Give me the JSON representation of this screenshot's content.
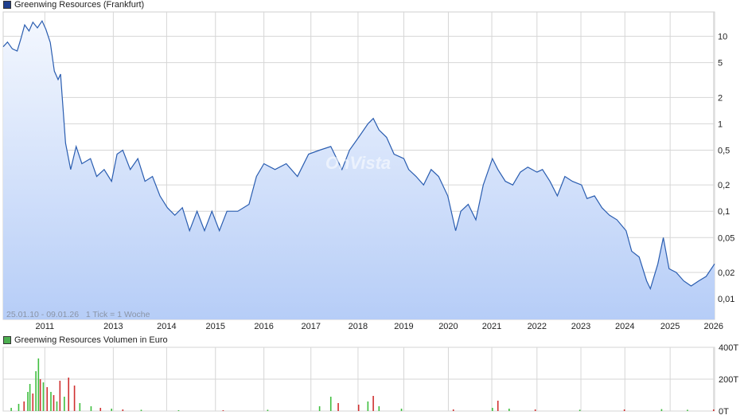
{
  "colors": {
    "price_line": "#2a5db0",
    "area_top": "#f3f7fe",
    "area_bottom": "#b6cdf7",
    "legend_price": "#1f3f8f",
    "legend_volume": "#4caf50",
    "volume_green": "#3fbf3f",
    "volume_red": "#d03030",
    "grid": "#d6d6d6"
  },
  "legend": {
    "price": "Greenwing Resources (Frankfurt)",
    "volume": "Greenwing Resources Volumen in Euro"
  },
  "info_text": "25.01.10 - 09.01.26   1 Tick = 1 Woche",
  "chart_data": [
    {
      "type": "line",
      "title": "Greenwing Resources (Frankfurt)",
      "y_scale": "log",
      "ylim": [
        0.0058,
        19
      ],
      "x_range": [
        "2010-01-25",
        "2026-01-09"
      ],
      "x_ticks": [
        "2011",
        "2013",
        "2014",
        "2015",
        "2016",
        "2017",
        "2018",
        "2019",
        "2020",
        "2021",
        "2022",
        "2023",
        "2024",
        "2025",
        "2026"
      ],
      "x_tick_dates": [
        "2011-01-01",
        "2012-07-15",
        "2013-09-25",
        "2014-10-30",
        "2015-12-01",
        "2016-12-20",
        "2018-01-10",
        "2019-01-20",
        "2020-01-20",
        "2021-01-10",
        "2022-01-15",
        "2023-01-10",
        "2024-01-05",
        "2025-01-10",
        "2026-01-01"
      ],
      "y_ticks": [
        10,
        5,
        2,
        1,
        0.5,
        0.2,
        0.1,
        0.05,
        0.02,
        0.01
      ],
      "y_tick_labels": [
        "10",
        "5",
        "2",
        "1",
        "0,5",
        "0,2",
        "0,1",
        "0,05",
        "0,02",
        "0,01"
      ],
      "grid": true,
      "series": [
        {
          "name": "Greenwing Resources (Frankfurt)",
          "points": [
            [
              "2010-01-25",
              7.6
            ],
            [
              "2010-03-01",
              8.6
            ],
            [
              "2010-04-10",
              7.2
            ],
            [
              "2010-05-20",
              6.8
            ],
            [
              "2010-06-20",
              9.5
            ],
            [
              "2010-07-20",
              13.5
            ],
            [
              "2010-08-25",
              11.5
            ],
            [
              "2010-09-25",
              14.5
            ],
            [
              "2010-11-01",
              12.5
            ],
            [
              "2010-12-10",
              15.0
            ],
            [
              "2011-01-10",
              12.0
            ],
            [
              "2011-02-15",
              8.5
            ],
            [
              "2011-03-20",
              4.0
            ],
            [
              "2011-04-20",
              3.2
            ],
            [
              "2011-05-10",
              3.7
            ],
            [
              "2011-06-20",
              0.6
            ],
            [
              "2011-08-01",
              0.3
            ],
            [
              "2011-09-15",
              0.55
            ],
            [
              "2011-11-01",
              0.35
            ],
            [
              "2012-01-10",
              0.4
            ],
            [
              "2012-03-01",
              0.25
            ],
            [
              "2012-05-01",
              0.3
            ],
            [
              "2012-07-01",
              0.22
            ],
            [
              "2012-08-15",
              0.45
            ],
            [
              "2012-10-01",
              0.5
            ],
            [
              "2012-12-01",
              0.3
            ],
            [
              "2013-02-01",
              0.4
            ],
            [
              "2013-04-01",
              0.22
            ],
            [
              "2013-06-01",
              0.25
            ],
            [
              "2013-08-01",
              0.15
            ],
            [
              "2013-10-01",
              0.11
            ],
            [
              "2013-12-01",
              0.09
            ],
            [
              "2014-02-01",
              0.11
            ],
            [
              "2014-04-01",
              0.06
            ],
            [
              "2014-06-01",
              0.1
            ],
            [
              "2014-08-01",
              0.06
            ],
            [
              "2014-10-01",
              0.1
            ],
            [
              "2014-12-01",
              0.06
            ],
            [
              "2015-02-01",
              0.1
            ],
            [
              "2015-05-01",
              0.1
            ],
            [
              "2015-08-01",
              0.12
            ],
            [
              "2015-10-01",
              0.25
            ],
            [
              "2015-12-01",
              0.35
            ],
            [
              "2016-03-01",
              0.3
            ],
            [
              "2016-06-01",
              0.35
            ],
            [
              "2016-09-01",
              0.25
            ],
            [
              "2016-12-01",
              0.45
            ],
            [
              "2017-03-01",
              0.5
            ],
            [
              "2017-06-01",
              0.55
            ],
            [
              "2017-09-01",
              0.3
            ],
            [
              "2017-11-01",
              0.5
            ],
            [
              "2018-01-15",
              0.7
            ],
            [
              "2018-04-01",
              1.0
            ],
            [
              "2018-05-15",
              1.15
            ],
            [
              "2018-07-01",
              0.85
            ],
            [
              "2018-09-01",
              0.7
            ],
            [
              "2018-11-01",
              0.45
            ],
            [
              "2019-01-20",
              0.4
            ],
            [
              "2019-03-01",
              0.3
            ],
            [
              "2019-05-01",
              0.25
            ],
            [
              "2019-07-01",
              0.2
            ],
            [
              "2019-09-01",
              0.3
            ],
            [
              "2019-11-01",
              0.25
            ],
            [
              "2020-01-15",
              0.15
            ],
            [
              "2020-03-20",
              0.06
            ],
            [
              "2020-05-01",
              0.1
            ],
            [
              "2020-07-01",
              0.12
            ],
            [
              "2020-09-01",
              0.08
            ],
            [
              "2020-11-01",
              0.2
            ],
            [
              "2021-01-15",
              0.4
            ],
            [
              "2021-03-01",
              0.3
            ],
            [
              "2021-05-01",
              0.22
            ],
            [
              "2021-07-01",
              0.2
            ],
            [
              "2021-09-01",
              0.28
            ],
            [
              "2021-11-01",
              0.32
            ],
            [
              "2022-01-15",
              0.28
            ],
            [
              "2022-03-01",
              0.3
            ],
            [
              "2022-05-01",
              0.22
            ],
            [
              "2022-07-01",
              0.15
            ],
            [
              "2022-09-01",
              0.25
            ],
            [
              "2022-11-01",
              0.22
            ],
            [
              "2023-01-15",
              0.2
            ],
            [
              "2023-03-01",
              0.14
            ],
            [
              "2023-05-01",
              0.15
            ],
            [
              "2023-07-01",
              0.11
            ],
            [
              "2023-09-01",
              0.09
            ],
            [
              "2023-11-01",
              0.08
            ],
            [
              "2024-01-15",
              0.06
            ],
            [
              "2024-03-01",
              0.035
            ],
            [
              "2024-05-01",
              0.03
            ],
            [
              "2024-07-01",
              0.016
            ],
            [
              "2024-08-01",
              0.013
            ],
            [
              "2024-10-01",
              0.025
            ],
            [
              "2024-11-15",
              0.05
            ],
            [
              "2025-01-01",
              0.022
            ],
            [
              "2025-03-01",
              0.02
            ],
            [
              "2025-05-01",
              0.016
            ],
            [
              "2025-07-01",
              0.014
            ],
            [
              "2025-09-01",
              0.016
            ],
            [
              "2025-11-01",
              0.018
            ],
            [
              "2026-01-09",
              0.025
            ]
          ]
        }
      ]
    },
    {
      "type": "bar",
      "title": "Greenwing Resources Volumen in Euro",
      "ylim": [
        0,
        400
      ],
      "y_ticks": [
        0,
        200,
        400
      ],
      "y_tick_labels": [
        "0T",
        "200T",
        "400T"
      ],
      "unit": "T",
      "series": [
        {
          "name": "Greenwing Resources Volumen in Euro",
          "points": [
            [
              "2010-04-01",
              20,
              "green"
            ],
            [
              "2010-06-01",
              45,
              "green"
            ],
            [
              "2010-07-15",
              60,
              "red"
            ],
            [
              "2010-08-15",
              120,
              "green"
            ],
            [
              "2010-09-01",
              170,
              "green"
            ],
            [
              "2010-09-25",
              110,
              "red"
            ],
            [
              "2010-10-20",
              250,
              "green"
            ],
            [
              "2010-11-10",
              330,
              "green"
            ],
            [
              "2010-11-25",
              200,
              "red"
            ],
            [
              "2010-12-20",
              180,
              "green"
            ],
            [
              "2011-01-20",
              150,
              "red"
            ],
            [
              "2011-02-20",
              120,
              "green"
            ],
            [
              "2011-03-15",
              100,
              "red"
            ],
            [
              "2011-04-10",
              60,
              "green"
            ],
            [
              "2011-05-05",
              190,
              "red"
            ],
            [
              "2011-06-10",
              90,
              "green"
            ],
            [
              "2011-07-15",
              210,
              "red"
            ],
            [
              "2011-09-01",
              160,
              "red"
            ],
            [
              "2011-10-15",
              50,
              "green"
            ],
            [
              "2012-01-15",
              30,
              "green"
            ],
            [
              "2012-04-01",
              20,
              "red"
            ],
            [
              "2012-07-01",
              15,
              "green"
            ],
            [
              "2012-10-01",
              10,
              "red"
            ],
            [
              "2013-03-01",
              8,
              "green"
            ],
            [
              "2014-01-01",
              5,
              "green"
            ],
            [
              "2015-01-01",
              5,
              "red"
            ],
            [
              "2016-01-01",
              8,
              "green"
            ],
            [
              "2017-03-01",
              30,
              "green"
            ],
            [
              "2017-06-01",
              90,
              "green"
            ],
            [
              "2017-08-01",
              50,
              "red"
            ],
            [
              "2018-01-15",
              40,
              "red"
            ],
            [
              "2018-04-01",
              60,
              "green"
            ],
            [
              "2018-05-15",
              95,
              "red"
            ],
            [
              "2018-07-01",
              30,
              "green"
            ],
            [
              "2019-01-01",
              15,
              "green"
            ],
            [
              "2020-03-01",
              10,
              "red"
            ],
            [
              "2021-01-15",
              20,
              "green"
            ],
            [
              "2021-03-01",
              65,
              "red"
            ],
            [
              "2021-06-01",
              15,
              "green"
            ],
            [
              "2022-01-01",
              10,
              "red"
            ],
            [
              "2023-01-01",
              8,
              "green"
            ],
            [
              "2024-01-01",
              10,
              "red"
            ],
            [
              "2024-11-01",
              12,
              "green"
            ],
            [
              "2025-06-01",
              8,
              "green"
            ],
            [
              "2026-01-01",
              10,
              "red"
            ]
          ]
        }
      ]
    }
  ]
}
